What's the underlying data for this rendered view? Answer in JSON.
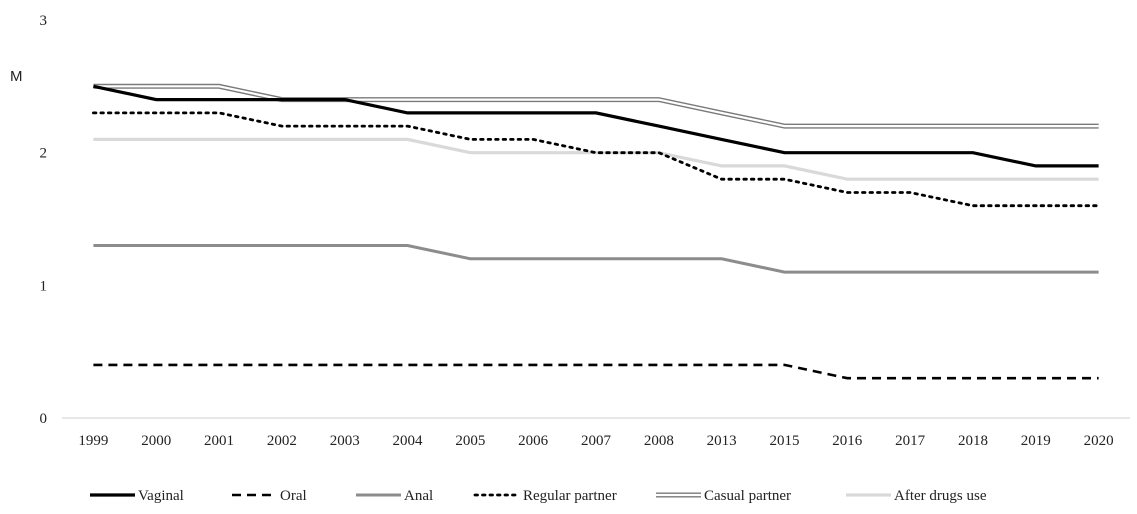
{
  "chart_data": {
    "type": "line",
    "ylabel": "M",
    "ylim": [
      0,
      3
    ],
    "yticks": [
      "0",
      "1",
      "2",
      "3"
    ],
    "categories": [
      "1999",
      "2000",
      "2001",
      "2002",
      "2003",
      "2004",
      "2005",
      "2006",
      "2007",
      "2008",
      "2013",
      "2015",
      "2016",
      "2017",
      "2018",
      "2019",
      "2020"
    ],
    "grid": false,
    "legend": "bottom",
    "series": [
      {
        "name": "Vaginal",
        "style": "solid-thick",
        "color": "#000000",
        "values": [
          2.5,
          2.4,
          2.4,
          2.4,
          2.4,
          2.3,
          2.3,
          2.3,
          2.3,
          2.2,
          2.1,
          2.0,
          2.0,
          2.0,
          2.0,
          1.9,
          1.9
        ]
      },
      {
        "name": "Oral",
        "style": "dashed",
        "color": "#000000",
        "values": [
          0.4,
          0.4,
          0.4,
          0.4,
          0.4,
          0.4,
          0.4,
          0.4,
          0.4,
          0.4,
          0.4,
          0.4,
          0.3,
          0.3,
          0.3,
          0.3,
          0.3
        ]
      },
      {
        "name": "Anal",
        "style": "solid",
        "color": "#8c8c8c",
        "values": [
          1.3,
          1.3,
          1.3,
          1.3,
          1.3,
          1.3,
          1.2,
          1.2,
          1.2,
          1.2,
          1.2,
          1.1,
          1.1,
          1.1,
          1.1,
          1.1,
          1.1
        ]
      },
      {
        "name": "Regular partner",
        "style": "dotted",
        "color": "#000000",
        "values": [
          2.3,
          2.3,
          2.3,
          2.2,
          2.2,
          2.2,
          2.1,
          2.1,
          2.0,
          2.0,
          1.8,
          1.8,
          1.7,
          1.7,
          1.6,
          1.6,
          1.6
        ]
      },
      {
        "name": "Casual partner",
        "style": "double",
        "color": "#7a7a7a",
        "values": [
          2.5,
          2.5,
          2.5,
          2.4,
          2.4,
          2.4,
          2.4,
          2.4,
          2.4,
          2.4,
          2.3,
          2.2,
          2.2,
          2.2,
          2.2,
          2.2,
          2.2
        ]
      },
      {
        "name": "After drugs use",
        "style": "solid-light",
        "color": "#d9d9d9",
        "values": [
          2.1,
          2.1,
          2.1,
          2.1,
          2.1,
          2.1,
          2.0,
          2.0,
          2.0,
          2.0,
          1.9,
          1.9,
          1.8,
          1.8,
          1.8,
          1.8,
          1.8
        ]
      }
    ]
  }
}
